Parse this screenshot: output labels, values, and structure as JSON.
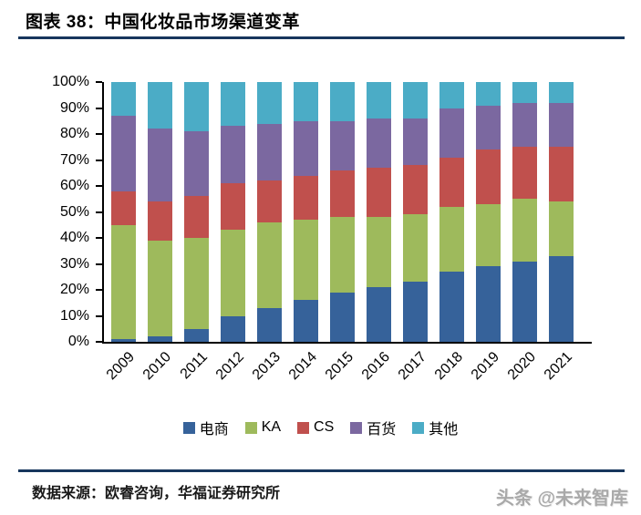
{
  "header": {
    "title": "图表 38：中国化妆品市场渠道变革"
  },
  "footer": {
    "source": "数据来源：欧睿咨询，华福证券研究所",
    "watermark": "头条 @未来智库"
  },
  "colors": {
    "rule": "#17365D",
    "axis": "#000000"
  },
  "chart_data": {
    "type": "bar",
    "stacked": true,
    "title": "图表 38：中国化妆品市场渠道变革",
    "xlabel": "",
    "ylabel": "",
    "ylim": [
      0,
      100
    ],
    "grid": false,
    "legend_position": "bottom",
    "y_ticks": [
      "0%",
      "10%",
      "20%",
      "30%",
      "40%",
      "50%",
      "60%",
      "70%",
      "80%",
      "90%",
      "100%"
    ],
    "categories": [
      "2009",
      "2010",
      "2011",
      "2012",
      "2013",
      "2014",
      "2015",
      "2016",
      "2017",
      "2018",
      "2019",
      "2020",
      "2021"
    ],
    "series": [
      {
        "name": "电商",
        "color": "#36629A",
        "values": [
          1,
          2,
          5,
          10,
          13,
          16,
          19,
          21,
          23,
          27,
          29,
          31,
          33
        ]
      },
      {
        "name": "KA",
        "color": "#9EBA5C",
        "values": [
          44,
          37,
          35,
          33,
          33,
          31,
          29,
          27,
          26,
          25,
          24,
          24,
          21
        ]
      },
      {
        "name": "CS",
        "color": "#C0504D",
        "values": [
          13,
          15,
          16,
          18,
          16,
          17,
          18,
          19,
          19,
          19,
          21,
          20,
          21
        ]
      },
      {
        "name": "百货",
        "color": "#7B68A0",
        "values": [
          29,
          28,
          25,
          22,
          22,
          21,
          19,
          19,
          18,
          19,
          17,
          17,
          17
        ]
      },
      {
        "name": "其他",
        "color": "#4BACC6",
        "values": [
          13,
          18,
          19,
          17,
          16,
          15,
          15,
          14,
          14,
          10,
          9,
          8,
          8
        ]
      }
    ]
  }
}
